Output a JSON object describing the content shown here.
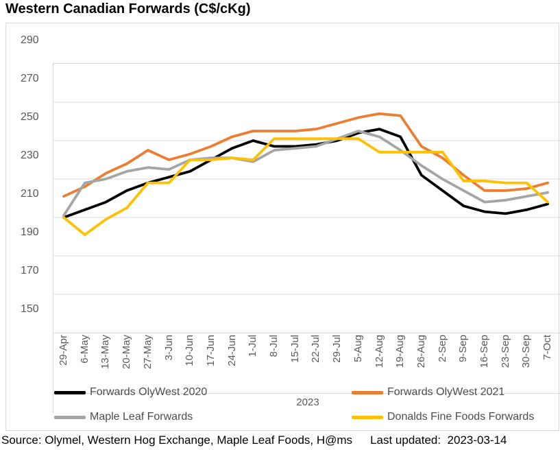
{
  "title": "Western Canadian Forwards (C$/cKg)",
  "footer": {
    "source": "Source: Olymel, Western Hog Exchange, Maple Leaf Foods, H@ms",
    "last_updated": "Last updated:  2023-03-14"
  },
  "colors": {
    "grid": "#d9d9d9",
    "axis_text": "#595959",
    "legend_text": "#4d4d4d",
    "title_text": "#000000"
  },
  "chart_data": {
    "type": "line",
    "title": "Western Canadian Forwards (C$/cKg)",
    "x_axis_title": "2023",
    "ylim": [
      150,
      290
    ],
    "yticks": [
      290,
      270,
      250,
      230,
      210,
      190,
      170,
      150
    ],
    "grid": true,
    "legend_position": "bottom",
    "x_tick_rotation": 90,
    "categories": [
      "29-Apr",
      "6-May",
      "13-May",
      "20-May",
      "27-May",
      "3-Jun",
      "10-Jun",
      "17-Jun",
      "24-Jun",
      "1-Jul",
      "8-Jul",
      "15-Jul",
      "22-Jul",
      "29-Jul",
      "5-Aug",
      "12-Aug",
      "19-Aug",
      "26-Aug",
      "2-Sep",
      "9-Sep",
      "16-Sep",
      "23-Sep",
      "30-Sep",
      "7-Oct"
    ],
    "series": [
      {
        "name": "Forwards OlyWest 2020",
        "color": "#000000",
        "values": [
          210,
          214,
          218,
          224,
          228,
          231,
          234,
          240,
          246,
          250,
          247,
          247,
          248,
          250,
          254,
          256,
          252,
          232,
          224,
          216,
          213,
          212,
          214,
          217
        ]
      },
      {
        "name": "Forwards OlyWest 2021",
        "color": "#ED7D31",
        "values": [
          221,
          226,
          233,
          238,
          245,
          240,
          243,
          247,
          252,
          255,
          255,
          255,
          256,
          259,
          262,
          264,
          263,
          247,
          241,
          232,
          224,
          224,
          225,
          228
        ]
      },
      {
        "name": "Maple Leaf Forwards",
        "color": "#A5A5A5",
        "values": [
          211,
          228,
          230,
          234,
          236,
          235,
          240,
          241,
          241,
          239,
          245,
          246,
          247,
          251,
          255,
          252,
          245,
          237,
          230,
          224,
          218,
          219,
          221,
          223
        ]
      },
      {
        "name": "Donalds Fine Foods Forwards",
        "color": "#FFC000",
        "values": [
          210,
          201,
          209,
          215,
          228,
          228,
          240,
          240,
          241,
          240,
          251,
          251,
          251,
          251,
          251,
          244,
          244,
          244,
          244,
          229,
          229,
          228,
          228,
          218
        ]
      }
    ]
  }
}
